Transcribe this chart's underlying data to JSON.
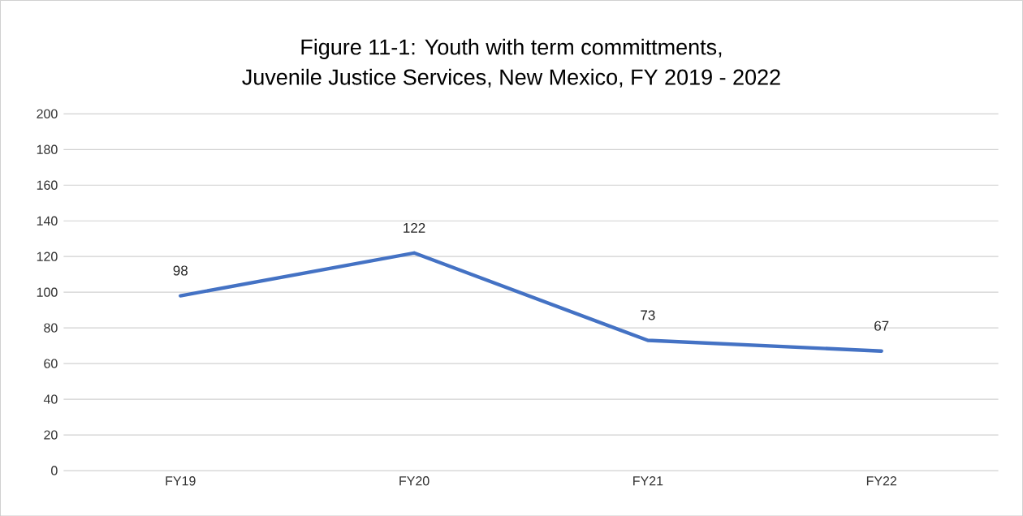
{
  "chart_data": {
    "type": "line",
    "title": "Figure 11-1: Youth with term committments,",
    "subtitle": "Juvenile Justice Services, New Mexico, FY 2019 - 2022",
    "categories": [
      "FY19",
      "FY20",
      "FY21",
      "FY22"
    ],
    "series": [
      {
        "color": "#4472c4",
        "values": [
          98,
          122,
          73,
          67
        ]
      }
    ],
    "ylim": [
      0,
      200
    ],
    "yticks": [
      0,
      20,
      40,
      60,
      80,
      100,
      120,
      140,
      160,
      180,
      200
    ],
    "grid": "y",
    "data_labels": true,
    "marker": "none",
    "line_style": "solid"
  }
}
